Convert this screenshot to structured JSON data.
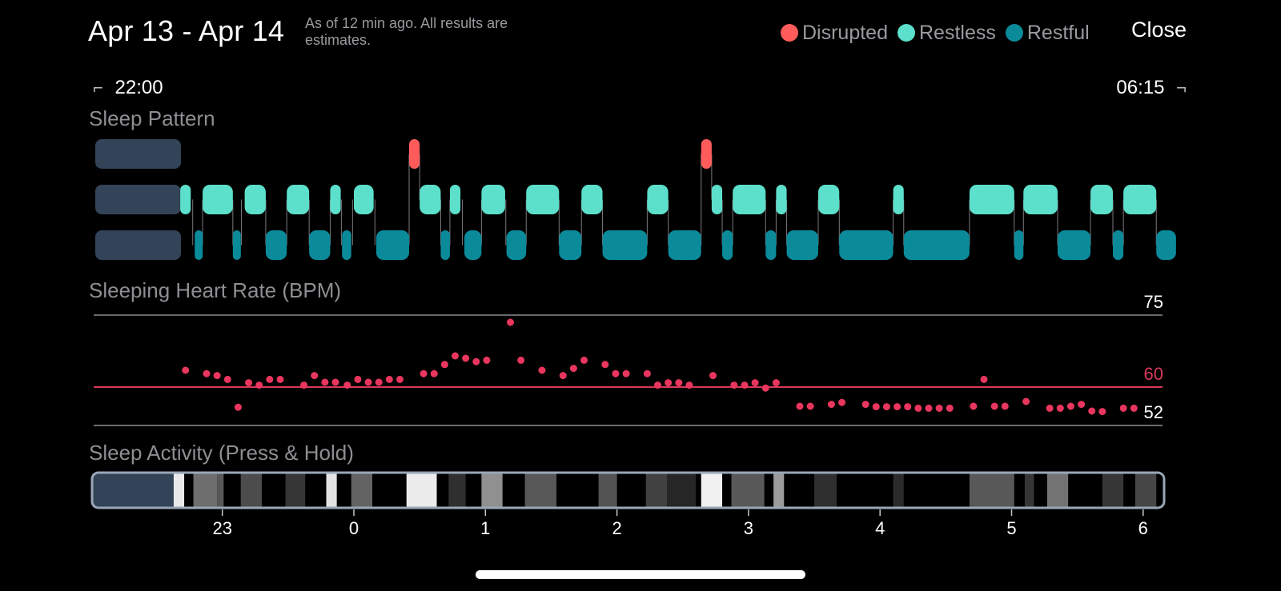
{
  "header": {
    "title": "Apr 13 - Apr 14",
    "as_of": "As of 12 min ago. All results are estimates.",
    "close_label": "Close"
  },
  "legend": [
    {
      "label": "Disrupted",
      "color": "#ff5b5b"
    },
    {
      "label": "Restless",
      "color": "#5cdfcb"
    },
    {
      "label": "Restful",
      "color": "#0b8a9a"
    }
  ],
  "range": {
    "start": "22:00",
    "end": "06:15"
  },
  "sections": {
    "sleep_pattern": "Sleep Pattern",
    "heart_rate": "Sleeping Heart Rate (BPM)",
    "activity": "Sleep Activity (Press & Hold)"
  },
  "colors": {
    "disrupted": "#ff5b5b",
    "restless": "#5cdfcb",
    "restful": "#0b8a9a",
    "awake_block": "#334358",
    "hr_dot": "#e8365e",
    "hr_avg_line": "#d8385a",
    "axis_line": "#8e8e93"
  },
  "chart_data": [
    {
      "type": "bar",
      "title": "Sleep Pattern",
      "states": [
        "Disrupted",
        "Restless",
        "Restful"
      ],
      "x_unit": "hours after midnight (negative = before midnight)",
      "xlim": [
        -2.0,
        6.25
      ],
      "segments": [
        {
          "state": "Restless",
          "start": -1.32,
          "end": -1.24
        },
        {
          "state": "Restful",
          "start": -1.21,
          "end": -1.15
        },
        {
          "state": "Restless",
          "start": -1.15,
          "end": -0.92
        },
        {
          "state": "Restful",
          "start": -0.92,
          "end": -0.88
        },
        {
          "state": "Restless",
          "start": -0.83,
          "end": -0.67
        },
        {
          "state": "Restful",
          "start": -0.67,
          "end": -0.51
        },
        {
          "state": "Restless",
          "start": -0.51,
          "end": -0.34
        },
        {
          "state": "Restful",
          "start": -0.34,
          "end": -0.18
        },
        {
          "state": "Restless",
          "start": -0.18,
          "end": -0.1
        },
        {
          "state": "Restful",
          "start": -0.09,
          "end": -0.02
        },
        {
          "state": "Restless",
          "start": 0.0,
          "end": 0.15
        },
        {
          "state": "Restful",
          "start": 0.17,
          "end": 0.42
        },
        {
          "state": "Disrupted",
          "start": 0.42,
          "end": 0.5
        },
        {
          "state": "Restless",
          "start": 0.5,
          "end": 0.66
        },
        {
          "state": "Restful",
          "start": 0.66,
          "end": 0.73
        },
        {
          "state": "Restless",
          "start": 0.73,
          "end": 0.81
        },
        {
          "state": "Restful",
          "start": 0.84,
          "end": 0.97
        },
        {
          "state": "Restless",
          "start": 0.97,
          "end": 1.15
        },
        {
          "state": "Restful",
          "start": 1.16,
          "end": 1.31
        },
        {
          "state": "Restless",
          "start": 1.31,
          "end": 1.56
        },
        {
          "state": "Restful",
          "start": 1.56,
          "end": 1.73
        },
        {
          "state": "Restless",
          "start": 1.73,
          "end": 1.89
        },
        {
          "state": "Restful",
          "start": 1.89,
          "end": 2.23
        },
        {
          "state": "Restless",
          "start": 2.23,
          "end": 2.39
        },
        {
          "state": "Restful",
          "start": 2.39,
          "end": 2.64
        },
        {
          "state": "Disrupted",
          "start": 2.64,
          "end": 2.72
        },
        {
          "state": "Restless",
          "start": 2.72,
          "end": 2.8
        },
        {
          "state": "Restful",
          "start": 2.8,
          "end": 2.88
        },
        {
          "state": "Restless",
          "start": 2.88,
          "end": 3.13
        },
        {
          "state": "Restful",
          "start": 3.13,
          "end": 3.21
        },
        {
          "state": "Restless",
          "start": 3.21,
          "end": 3.29
        },
        {
          "state": "Restful",
          "start": 3.29,
          "end": 3.53
        },
        {
          "state": "Restless",
          "start": 3.53,
          "end": 3.69
        },
        {
          "state": "Restful",
          "start": 3.69,
          "end": 4.1
        },
        {
          "state": "Restless",
          "start": 4.1,
          "end": 4.18
        },
        {
          "state": "Restful",
          "start": 4.18,
          "end": 4.68
        },
        {
          "state": "Restless",
          "start": 4.68,
          "end": 5.02
        },
        {
          "state": "Restful",
          "start": 5.02,
          "end": 5.09
        },
        {
          "state": "Restless",
          "start": 5.09,
          "end": 5.35
        },
        {
          "state": "Restful",
          "start": 5.35,
          "end": 5.6
        },
        {
          "state": "Restless",
          "start": 5.6,
          "end": 5.77
        },
        {
          "state": "Restful",
          "start": 5.77,
          "end": 5.85
        },
        {
          "state": "Restless",
          "start": 5.85,
          "end": 6.1
        },
        {
          "state": "Restful",
          "start": 6.1,
          "end": 6.25
        }
      ]
    },
    {
      "type": "scatter",
      "title": "Sleeping Heart Rate (BPM)",
      "ylim": [
        52,
        75
      ],
      "reference_lines": [
        {
          "label": "75",
          "value": 75
        },
        {
          "label": "60",
          "value": 60
        },
        {
          "label": "52",
          "value": 52
        }
      ],
      "x_unit": "hours after midnight (negative = before midnight)",
      "series": [
        {
          "points": [
            [
              -1.28,
              63.5
            ],
            [
              -1.12,
              62.8
            ],
            [
              -1.04,
              62.4
            ],
            [
              -0.96,
              61.6
            ],
            [
              -0.88,
              55.8
            ],
            [
              -0.8,
              60.9
            ],
            [
              -0.72,
              60.4
            ],
            [
              -0.64,
              61.6
            ],
            [
              -0.56,
              61.6
            ],
            [
              -0.38,
              60.4
            ],
            [
              -0.3,
              62.4
            ],
            [
              -0.22,
              61.0
            ],
            [
              -0.14,
              61.0
            ],
            [
              -0.05,
              60.4
            ],
            [
              0.03,
              61.6
            ],
            [
              0.11,
              61.0
            ],
            [
              0.19,
              61.0
            ],
            [
              0.27,
              61.6
            ],
            [
              0.35,
              61.6
            ],
            [
              0.53,
              62.8
            ],
            [
              0.61,
              62.8
            ],
            [
              0.69,
              64.7
            ],
            [
              0.77,
              66.5
            ],
            [
              0.85,
              66.0
            ],
            [
              0.93,
              65.3
            ],
            [
              1.01,
              65.6
            ],
            [
              1.19,
              73.5
            ],
            [
              1.27,
              65.6
            ],
            [
              1.43,
              63.5
            ],
            [
              1.59,
              62.4
            ],
            [
              1.67,
              63.9
            ],
            [
              1.75,
              65.6
            ],
            [
              1.91,
              64.7
            ],
            [
              1.99,
              62.8
            ],
            [
              2.07,
              62.8
            ],
            [
              2.23,
              62.8
            ],
            [
              2.31,
              60.4
            ],
            [
              2.39,
              60.9
            ],
            [
              2.47,
              60.9
            ],
            [
              2.55,
              60.4
            ],
            [
              2.73,
              62.4
            ],
            [
              2.89,
              60.4
            ],
            [
              2.97,
              60.4
            ],
            [
              3.05,
              60.9
            ],
            [
              3.13,
              59.8
            ],
            [
              3.21,
              60.9
            ],
            [
              3.39,
              56.0
            ],
            [
              3.47,
              56.0
            ],
            [
              3.63,
              56.4
            ],
            [
              3.71,
              56.8
            ],
            [
              3.89,
              56.4
            ],
            [
              3.97,
              55.9
            ],
            [
              4.05,
              55.9
            ],
            [
              4.13,
              55.9
            ],
            [
              4.21,
              55.9
            ],
            [
              4.29,
              55.6
            ],
            [
              4.37,
              55.6
            ],
            [
              4.45,
              55.6
            ],
            [
              4.53,
              55.6
            ],
            [
              4.71,
              56.0
            ],
            [
              4.79,
              61.6
            ],
            [
              4.87,
              56.0
            ],
            [
              4.95,
              56.0
            ],
            [
              5.11,
              57.0
            ],
            [
              5.29,
              55.6
            ],
            [
              5.37,
              55.6
            ],
            [
              5.45,
              56.0
            ],
            [
              5.53,
              56.4
            ],
            [
              5.61,
              55.0
            ],
            [
              5.69,
              54.9
            ],
            [
              5.85,
              55.6
            ],
            [
              5.93,
              55.6
            ]
          ]
        }
      ]
    },
    {
      "type": "heatmap",
      "title": "Sleep Activity (Press & Hold)",
      "x_ticks": [
        "23",
        "0",
        "1",
        "2",
        "3",
        "4",
        "5",
        "6"
      ],
      "x_tick_values": [
        -1,
        0,
        1,
        2,
        3,
        4,
        5,
        6
      ],
      "x_unit": "hours after midnight (negative = before midnight)",
      "cells": [
        {
          "start": -1.37,
          "end": -1.29,
          "intensity": 0.95
        },
        {
          "start": -1.22,
          "end": -1.04,
          "intensity": 0.4
        },
        {
          "start": -1.04,
          "end": -0.99,
          "intensity": 0.3
        },
        {
          "start": -0.86,
          "end": -0.7,
          "intensity": 0.25
        },
        {
          "start": -0.52,
          "end": -0.37,
          "intensity": 0.15
        },
        {
          "start": -0.21,
          "end": -0.13,
          "intensity": 0.92
        },
        {
          "start": -0.02,
          "end": 0.14,
          "intensity": 0.35
        },
        {
          "start": 0.4,
          "end": 0.63,
          "intensity": 0.96
        },
        {
          "start": 0.72,
          "end": 0.85,
          "intensity": 0.12
        },
        {
          "start": 0.97,
          "end": 1.13,
          "intensity": 0.55
        },
        {
          "start": 1.3,
          "end": 1.54,
          "intensity": 0.3
        },
        {
          "start": 1.86,
          "end": 2.0,
          "intensity": 0.28
        },
        {
          "start": 2.22,
          "end": 2.4,
          "intensity": 0.2
        },
        {
          "start": 2.38,
          "end": 2.6,
          "intensity": 0.08
        },
        {
          "start": 2.64,
          "end": 2.8,
          "intensity": 0.98
        },
        {
          "start": 2.87,
          "end": 3.12,
          "intensity": 0.3
        },
        {
          "start": 3.19,
          "end": 3.27,
          "intensity": 0.6
        },
        {
          "start": 3.5,
          "end": 3.67,
          "intensity": 0.12
        },
        {
          "start": 4.1,
          "end": 4.18,
          "intensity": 0.1
        },
        {
          "start": 4.68,
          "end": 5.02,
          "intensity": 0.3
        },
        {
          "start": 5.1,
          "end": 5.17,
          "intensity": 0.15
        },
        {
          "start": 5.27,
          "end": 5.43,
          "intensity": 0.42
        },
        {
          "start": 5.69,
          "end": 5.85,
          "intensity": 0.15
        },
        {
          "start": 5.94,
          "end": 6.1,
          "intensity": 0.22
        }
      ]
    }
  ]
}
